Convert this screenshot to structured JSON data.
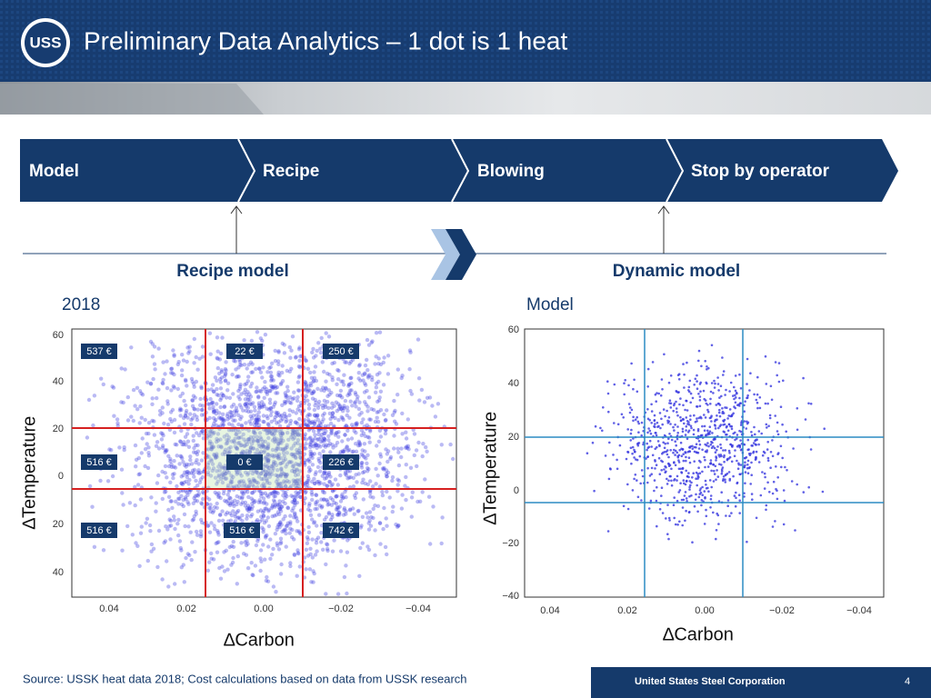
{
  "header": {
    "title": "Preliminary Data Analytics – 1 dot is 1 heat",
    "logo": "USS"
  },
  "process": {
    "steps": [
      "Model",
      "Recipe",
      "Blowing",
      "Stop by operator"
    ]
  },
  "models": {
    "recipe": "Recipe model",
    "dynamic": "Dynamic model"
  },
  "left_panel": {
    "label": "2018",
    "y_axis": "∆Temperature",
    "x_axis": "∆Carbon",
    "yticks": [
      "60",
      "40",
      "20",
      "0",
      "20",
      "40"
    ],
    "xticks": [
      "0.04",
      "0.02",
      "0.00",
      "−0.02",
      "−0.04"
    ],
    "costs": [
      "537 €",
      "22 €",
      "250 €",
      "516 €",
      "0 €",
      "226 €",
      "516 €",
      "516 €",
      "742 €"
    ]
  },
  "right_panel": {
    "label": "Model",
    "y_axis": "∆Temperature",
    "x_axis": "∆Carbon",
    "yticks": [
      "60",
      "40",
      "20",
      "0",
      "−20",
      "−40"
    ],
    "xticks": [
      "0.04",
      "0.02",
      "0.00",
      "−0.02",
      "−0.04"
    ]
  },
  "footer": {
    "source": "Source: USSK heat data 2018; Cost calculations based on data from USSK research",
    "company": "United States Steel Corporation",
    "page": "4"
  }
}
